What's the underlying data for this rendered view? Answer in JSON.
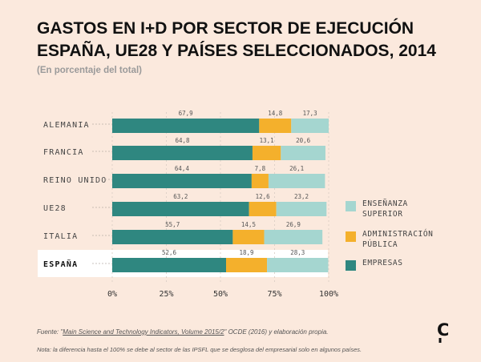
{
  "title_lines": [
    "GASTOS EN I+D POR SECTOR DE EJECUCIÓN",
    "ESPAÑA, UE28 Y PAÍSES SELECCIONADOS, 2014"
  ],
  "subtitle": "(En porcentaje del total)",
  "footer": {
    "source_prefix": "Fuente: \"",
    "source_title": "Main Science and Technology Indicators, Volume 2015/2",
    "source_suffix": "\" OCDE (2016) y elaboración propia.",
    "note": "Nota: la diferencia hasta el 100% se debe al sector de las IPSFL que se desglosa del empresarial solo en algunos países."
  },
  "logo_label": "C",
  "colors": {
    "empresas": "#2f8780",
    "administracion": "#f4b02c",
    "ensenanza": "#a5d6d0",
    "background": "#fbe9dd",
    "highlight": "#ffffff"
  },
  "chart_data": {
    "type": "bar",
    "orientation": "horizontal",
    "stacked": true,
    "categories": [
      "ALEMANIA",
      "FRANCIA",
      "REINO UNIDO",
      "UE28",
      "ITALIA",
      "ESPAÑA"
    ],
    "highlight_category": "ESPAÑA",
    "series": [
      {
        "name": "EMPRESAS",
        "color": "#2f8780",
        "values": [
          67.9,
          64.8,
          64.4,
          63.2,
          55.7,
          52.6
        ],
        "labels": [
          "67,9",
          "64,8",
          "64,4",
          "63,2",
          "55,7",
          "52,6"
        ]
      },
      {
        "name": "ADMINISTRACIÓN PÚBLICA",
        "color": "#f4b02c",
        "values": [
          14.8,
          13.1,
          7.8,
          12.6,
          14.5,
          18.9
        ],
        "labels": [
          "14,8",
          "13,1",
          "7,8",
          "12,6",
          "14,5",
          "18,9"
        ]
      },
      {
        "name": "ENSEÑANZA SUPERIOR",
        "color": "#a5d6d0",
        "values": [
          17.3,
          20.6,
          26.1,
          23.2,
          26.9,
          28.3
        ],
        "labels": [
          "17,3",
          "20,6",
          "26,1",
          "23,2",
          "26,9",
          "28,3"
        ]
      }
    ],
    "xlim": [
      0,
      100
    ],
    "xticks": [
      "0%",
      "25%",
      "50%",
      "75%",
      "100%"
    ],
    "xtick_values": [
      0,
      25,
      50,
      75,
      100
    ],
    "legend": [
      {
        "lines": [
          "ENSEÑANZA",
          "SUPERIOR"
        ],
        "color": "#a5d6d0"
      },
      {
        "lines": [
          "ADMINISTRACIÓN",
          "PÚBLICA"
        ],
        "color": "#f4b02c"
      },
      {
        "lines": [
          "EMPRESAS"
        ],
        "color": "#2f8780"
      }
    ],
    "legend_position": "right",
    "grid": true
  }
}
